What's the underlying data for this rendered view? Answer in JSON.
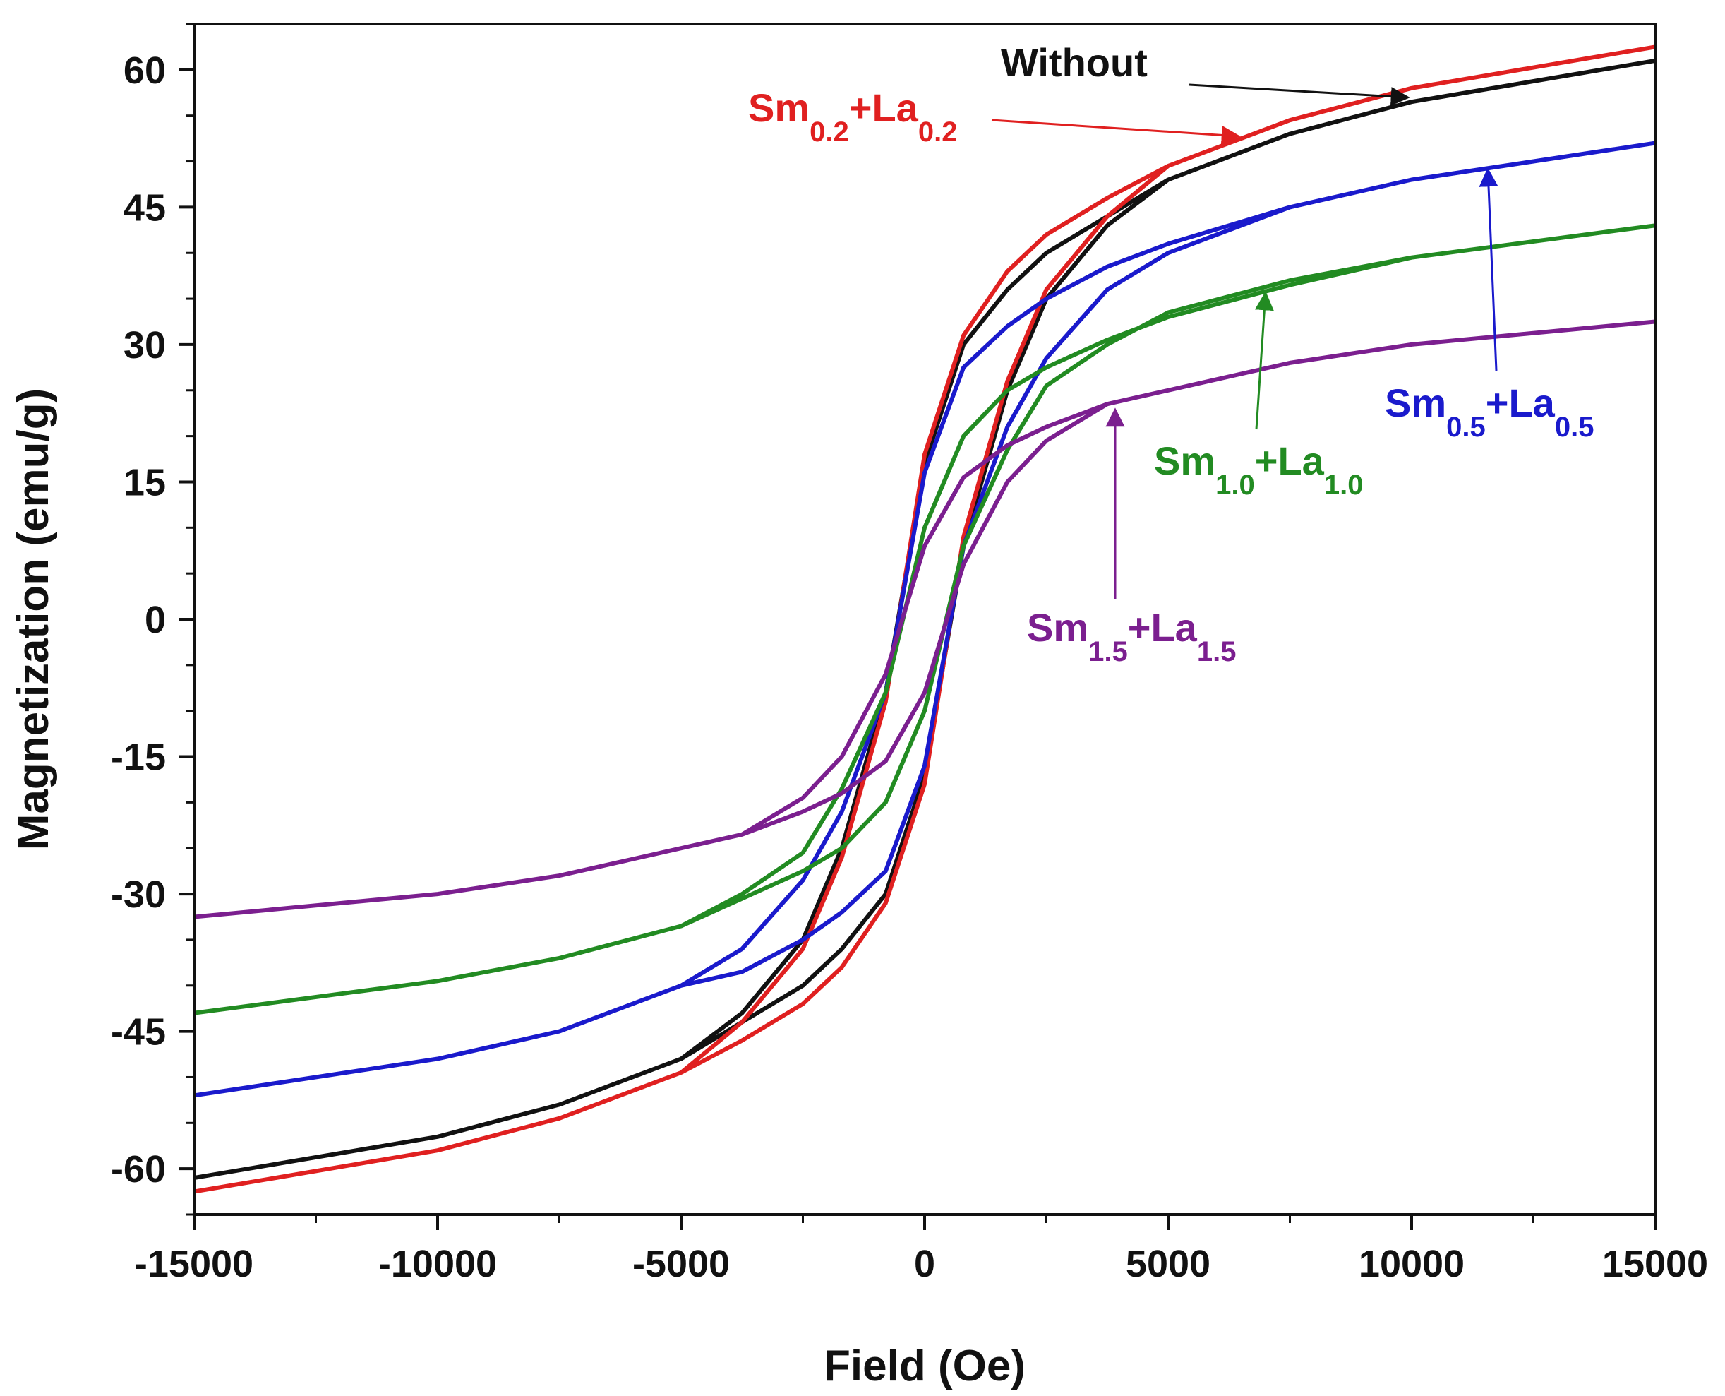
{
  "chart_data": {
    "type": "line",
    "title": "",
    "xlabel": "Field (Oe)",
    "ylabel": "Magnetization (emu/g)",
    "xlim": [
      -15000,
      15000
    ],
    "ylim": [
      -65,
      65
    ],
    "xticks": [
      -15000,
      -10000,
      -5000,
      0,
      5000,
      10000,
      15000
    ],
    "xtick_labels": [
      "-15000",
      "-10000",
      "-5000",
      "0",
      "5000",
      "10000",
      "15000"
    ],
    "yticks": [
      -60,
      -45,
      -30,
      -15,
      0,
      15,
      30,
      45,
      60
    ],
    "ytick_labels": [
      "-60",
      "-45",
      "-30",
      "-15",
      "0",
      "15",
      "30",
      "45",
      "60"
    ],
    "grid": false,
    "series": [
      {
        "name": "Without",
        "color": "#111111",
        "x": [
          15000,
          10000,
          7500,
          5000,
          3750,
          2500,
          1700,
          800,
          0,
          -800,
          -1700,
          -2500,
          -3750,
          -5000,
          -7500,
          -10000,
          -15000,
          -10000,
          -7500,
          -5000,
          -3750,
          -2500,
          -1700,
          -800,
          0,
          800,
          1700,
          2500,
          3750,
          5000,
          7500,
          10000,
          15000
        ],
        "y": [
          61,
          56.5,
          53,
          48,
          44,
          40,
          36,
          30,
          17,
          -8,
          -25,
          -35,
          -43,
          -48,
          -53,
          -56.5,
          -61,
          -56.5,
          -53,
          -48,
          -44,
          -40,
          -36,
          -30,
          -17,
          8,
          25,
          35,
          43,
          48,
          53,
          56.5,
          61
        ]
      },
      {
        "name": "Sm0.2+La0.2",
        "label_main": "Sm",
        "label_sub1": "0.2",
        "label_mid": "+La",
        "label_sub2": "0.2",
        "color": "#e02020",
        "x": [
          15000,
          10000,
          7500,
          5000,
          3750,
          2500,
          1700,
          800,
          0,
          -800,
          -1700,
          -2500,
          -3750,
          -5000,
          -7500,
          -10000,
          -15000,
          -10000,
          -7500,
          -5000,
          -3750,
          -2500,
          -1700,
          -800,
          0,
          800,
          1700,
          2500,
          3750,
          5000,
          7500,
          10000,
          15000
        ],
        "y": [
          62.5,
          58,
          54.5,
          49.5,
          46,
          42,
          38,
          31,
          18,
          -9,
          -26,
          -36,
          -44,
          -49.5,
          -54.5,
          -58,
          -62.5,
          -58,
          -54.5,
          -49.5,
          -46,
          -42,
          -38,
          -31,
          -18,
          9,
          26,
          36,
          44,
          49.5,
          54.5,
          58,
          62.5
        ]
      },
      {
        "name": "Sm0.5+La0.5",
        "label_main": "Sm",
        "label_sub1": "0.5",
        "label_mid": "+La",
        "label_sub2": "0.5",
        "color": "#1a1acc",
        "x": [
          15000,
          10000,
          7500,
          5000,
          3750,
          2500,
          1700,
          800,
          0,
          -800,
          -1700,
          -2500,
          -3750,
          -5000,
          -7500,
          -10000,
          -15000,
          -10000,
          -7500,
          -5000,
          -3750,
          -2500,
          -1700,
          -800,
          0,
          800,
          1700,
          2500,
          3750,
          5000,
          7500,
          10000,
          15000
        ],
        "y": [
          52,
          48,
          45,
          41,
          38.5,
          35,
          32,
          27.5,
          16,
          -8,
          -21,
          -28.5,
          -36,
          -40,
          -45,
          -48,
          -52,
          -48,
          -45,
          -40,
          -38.5,
          -35,
          -32,
          -27.5,
          -16,
          8,
          21,
          28.5,
          36,
          40,
          45,
          48,
          52
        ]
      },
      {
        "name": "Sm1.0+La1.0",
        "label_main": "Sm",
        "label_sub1": "1.0",
        "label_mid": "+La",
        "label_sub2": "1.0",
        "color": "#228b22",
        "x": [
          15000,
          10000,
          7500,
          5000,
          3750,
          2500,
          1700,
          800,
          0,
          -800,
          -1700,
          -2500,
          -3750,
          -5000,
          -7500,
          -10000,
          -15000,
          -10000,
          -7500,
          -5000,
          -3750,
          -2500,
          -1700,
          -800,
          0,
          800,
          1700,
          2500,
          3750,
          5000,
          7500,
          10000,
          15000
        ],
        "y": [
          43,
          39.5,
          36.5,
          33,
          30.5,
          27.5,
          25,
          20,
          10,
          -8,
          -18.5,
          -25.5,
          -30,
          -33.5,
          -37,
          -39.5,
          -43,
          -39.5,
          -37,
          -33.5,
          -30.5,
          -27.5,
          -25,
          -20,
          -10,
          8,
          18.5,
          25.5,
          30,
          33.5,
          37,
          39.5,
          43
        ]
      },
      {
        "name": "Sm1.5+La1.5",
        "label_main": "Sm",
        "label_sub1": "1.5",
        "label_mid": "+La",
        "label_sub2": "1.5",
        "color": "#7b1f8f",
        "x": [
          15000,
          10000,
          7500,
          5000,
          3750,
          2500,
          1700,
          800,
          0,
          -800,
          -1700,
          -2500,
          -3750,
          -5000,
          -7500,
          -10000,
          -15000,
          -10000,
          -7500,
          -5000,
          -3750,
          -2500,
          -1700,
          -800,
          0,
          800,
          1700,
          2500,
          3750,
          5000,
          7500,
          10000,
          15000
        ],
        "y": [
          32.5,
          30,
          28,
          25,
          23.5,
          21,
          19,
          15.5,
          8,
          -6,
          -15,
          -19.5,
          -23.5,
          -25,
          -28,
          -30,
          -32.5,
          -30,
          -28,
          -25,
          -23.5,
          -21,
          -19,
          -15.5,
          -8,
          6,
          15,
          19.5,
          23.5,
          25,
          28,
          30,
          32.5
        ]
      }
    ],
    "annotations": [
      {
        "text": "Without",
        "series": "Without",
        "target": [
          9800,
          56.5
        ]
      },
      {
        "text": "Sm0.2+La0.2",
        "series": "Sm0.2+La0.2",
        "target": [
          6500,
          52
        ]
      },
      {
        "text": "Sm0.5+La0.5",
        "series": "Sm0.5+La0.5",
        "target": [
          11600,
          49.5
        ]
      },
      {
        "text": "Sm1.0+La1.0",
        "series": "Sm1.0+La1.0",
        "target": [
          7000,
          36
        ]
      },
      {
        "text": "Sm1.5+La1.5",
        "series": "Sm1.5+La1.5",
        "target": [
          3800,
          23.5
        ]
      }
    ]
  }
}
